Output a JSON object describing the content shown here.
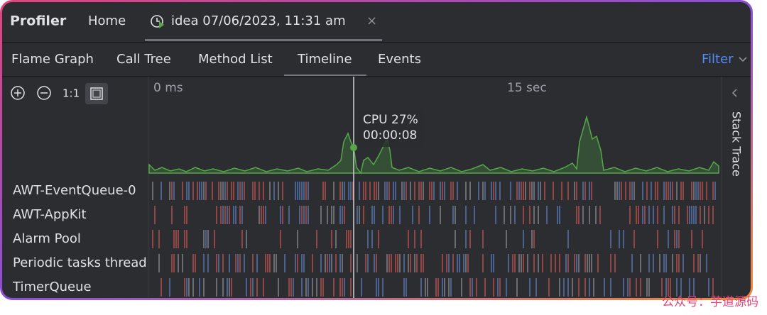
{
  "header": {
    "title": "Profiler",
    "tabs": [
      {
        "label": "Home"
      },
      {
        "label": "idea 07/06/2023, 11:31 am",
        "close": "×"
      }
    ]
  },
  "view_tabs": [
    "Flame Graph",
    "Call Tree",
    "Method List",
    "Timeline",
    "Events"
  ],
  "filter": "Filter",
  "zoom": {
    "reset": "1:1"
  },
  "timeline": {
    "ticks": [
      "0 ms",
      "15 sec"
    ],
    "tooltip": [
      "CPU 27%",
      "00:00:08"
    ],
    "threads": [
      "AWT-EventQueue-0",
      "AWT-AppKit",
      "Alarm Pool",
      "Periodic tasks thread",
      "TimerQueue"
    ]
  },
  "side_panel": "Stack Trace",
  "watermark": "公众号：芋道源码"
}
